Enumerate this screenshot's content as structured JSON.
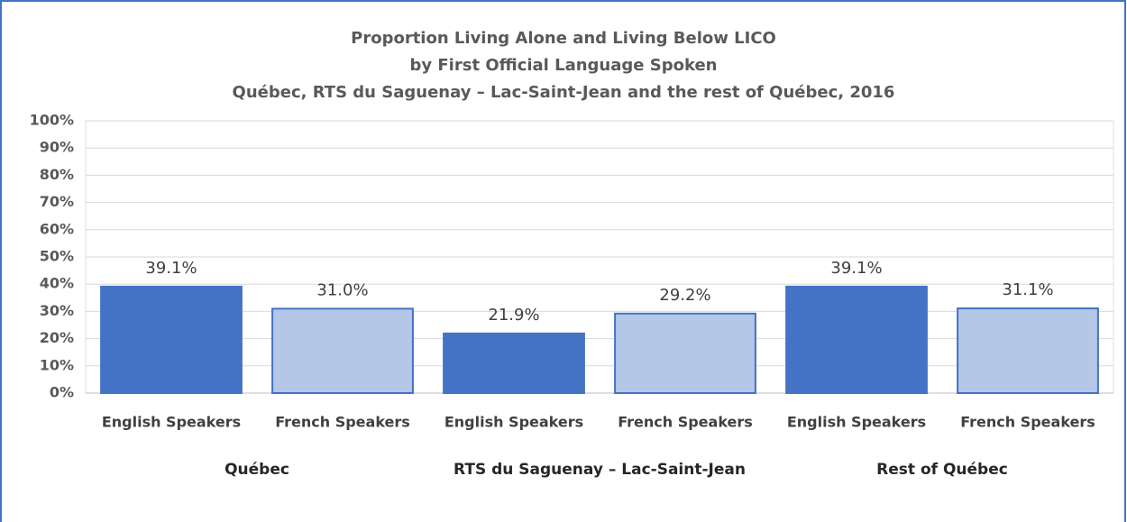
{
  "chart_data": {
    "type": "bar",
    "title": [
      "Proportion Living Alone and Living Below LICO",
      "by First Official Language Spoken",
      "Québec, RTS du Saguenay – Lac-Saint-Jean and the rest of Québec, 2016"
    ],
    "groups": [
      {
        "name": "Québec",
        "categories": [
          "English Speakers",
          "French Speakers"
        ],
        "values": [
          39.1,
          31.0
        ],
        "value_labels": [
          "39.1%",
          "31.0%"
        ]
      },
      {
        "name": "RTS du Saguenay – Lac-Saint-Jean",
        "categories": [
          "English Speakers",
          "French Speakers"
        ],
        "values": [
          21.9,
          29.2
        ],
        "value_labels": [
          "21.9%",
          "29.2%"
        ]
      },
      {
        "name": "Rest of Québec",
        "categories": [
          "English Speakers",
          "French Speakers"
        ],
        "values": [
          39.1,
          31.1
        ],
        "value_labels": [
          "39.1%",
          "31.1%"
        ]
      }
    ],
    "colors": [
      "#4472c4",
      "#b4c7e7"
    ],
    "edge_color": "#4472c4",
    "ylim": [
      0,
      100
    ],
    "yticks": [
      {
        "value": 0,
        "label": "0%"
      },
      {
        "value": 10,
        "label": "10%"
      },
      {
        "value": 20,
        "label": "20%"
      },
      {
        "value": 30,
        "label": "30%"
      },
      {
        "value": 40,
        "label": "40%"
      },
      {
        "value": 50,
        "label": "50%"
      },
      {
        "value": 60,
        "label": "60%"
      },
      {
        "value": 70,
        "label": "70%"
      },
      {
        "value": 80,
        "label": "80%"
      },
      {
        "value": 90,
        "label": "90%"
      },
      {
        "value": 100,
        "label": "100%"
      }
    ],
    "grid": true
  }
}
